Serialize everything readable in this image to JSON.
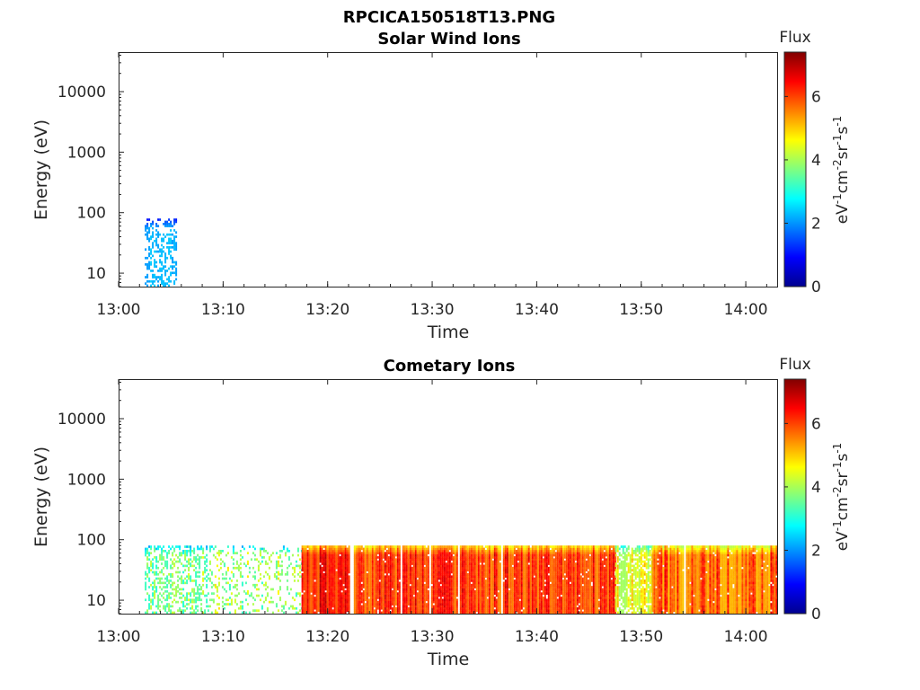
{
  "figure": {
    "title": "RPCICA150518T13.PNG"
  },
  "colorbar": {
    "label": "Flux",
    "ticks": [
      0,
      2,
      4,
      6
    ],
    "range": [
      0,
      7.4
    ],
    "colormap": "jet"
  },
  "chart_data": [
    {
      "type": "heatmap",
      "title": "Solar Wind Ions",
      "xlabel": "Time",
      "ylabel": "Energy (eV)",
      "x_ticks": [
        "13:00",
        "13:10",
        "13:20",
        "13:30",
        "13:40",
        "13:50",
        "14:00"
      ],
      "xlim": [
        "13:00",
        "14:03"
      ],
      "y_ticks": [
        10,
        100,
        1000,
        10000
      ],
      "ylim": [
        6,
        45000
      ],
      "y_scale": "log",
      "colorbar_label": "eV⁻¹cm⁻²sr⁻¹s⁻¹",
      "segments": [
        {
          "t0": "13:02.5",
          "t1": "13:05.5",
          "emin": 6,
          "emax": 80,
          "flux": [
            1.8,
            2.5
          ],
          "fill": "sparse"
        }
      ]
    },
    {
      "type": "heatmap",
      "title": "Cometary Ions",
      "xlabel": "Time",
      "ylabel": "Energy (eV)",
      "x_ticks": [
        "13:00",
        "13:10",
        "13:20",
        "13:30",
        "13:40",
        "13:50",
        "14:00"
      ],
      "xlim": [
        "13:00",
        "14:03"
      ],
      "y_ticks": [
        10,
        100,
        1000,
        10000
      ],
      "ylim": [
        6,
        45000
      ],
      "y_scale": "log",
      "colorbar_label": "eV⁻¹cm⁻²sr⁻¹s⁻¹",
      "segments": [
        {
          "t0": "13:02.5",
          "t1": "13:08.5",
          "emin": 6,
          "emax": 80,
          "flux": [
            2.2,
            4.6
          ],
          "fill": "sparse"
        },
        {
          "t0": "13:08.5",
          "t1": "13:17.5",
          "emin": 6,
          "emax": 80,
          "flux": [
            2.0,
            5.0
          ],
          "fill": "very-sparse"
        },
        {
          "t0": "13:17.5",
          "t1": "13:22.0",
          "emin": 6,
          "emax": 80,
          "flux": [
            4.8,
            7.2
          ],
          "fill": "dense"
        },
        {
          "t0": "13:22.5",
          "t1": "13:47.5",
          "emin": 6,
          "emax": 80,
          "flux": [
            4.5,
            7.0
          ],
          "fill": "dense"
        },
        {
          "t0": "13:47.5",
          "t1": "13:51.0",
          "emin": 6,
          "emax": 80,
          "flux": [
            2.8,
            5.5
          ],
          "fill": "medium"
        },
        {
          "t0": "13:51.0",
          "t1": "14:03.0",
          "emin": 6,
          "emax": 80,
          "flux": [
            4.0,
            6.8
          ],
          "fill": "dense"
        }
      ]
    }
  ]
}
